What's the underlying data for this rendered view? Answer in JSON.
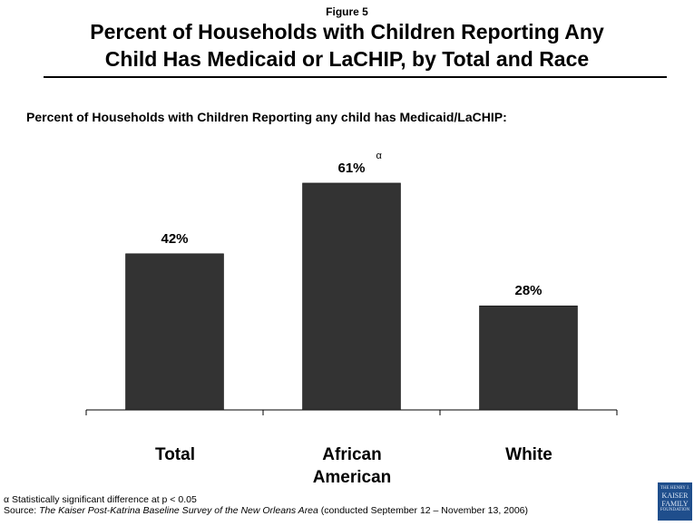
{
  "figure_label": "Figure 5",
  "title_line1": "Percent of Households with Children Reporting Any",
  "title_line2": "Child Has Medicaid or LaCHIP, by Total and Race",
  "chart_data": {
    "type": "bar",
    "subtitle": "Percent of Households with Children Reporting any child has Medicaid/LaCHIP:",
    "categories": [
      "Total",
      "African American",
      "White"
    ],
    "values": [
      42,
      61,
      28
    ],
    "data_labels": [
      "42%",
      "61%",
      "28%"
    ],
    "annotations": [
      {
        "category": "African American",
        "text": "α"
      }
    ],
    "ylim": [
      0,
      100
    ],
    "bar_color": "#333333",
    "grid": false
  },
  "x_labels": {
    "total": "Total",
    "african_american_line1": "African",
    "african_american_line2": "American",
    "white": "White"
  },
  "footnote": "α Statistically significant difference at p < 0.05",
  "source": {
    "prefix": "Source: ",
    "title": "The Kaiser Post-Katrina Baseline Survey of the New Orleans Area",
    "suffix": " (conducted September 12 – November 13, 2006)"
  },
  "logo_text": [
    "THE HENRY J.",
    "KAISER",
    "FAMILY",
    "FOUNDATION"
  ]
}
